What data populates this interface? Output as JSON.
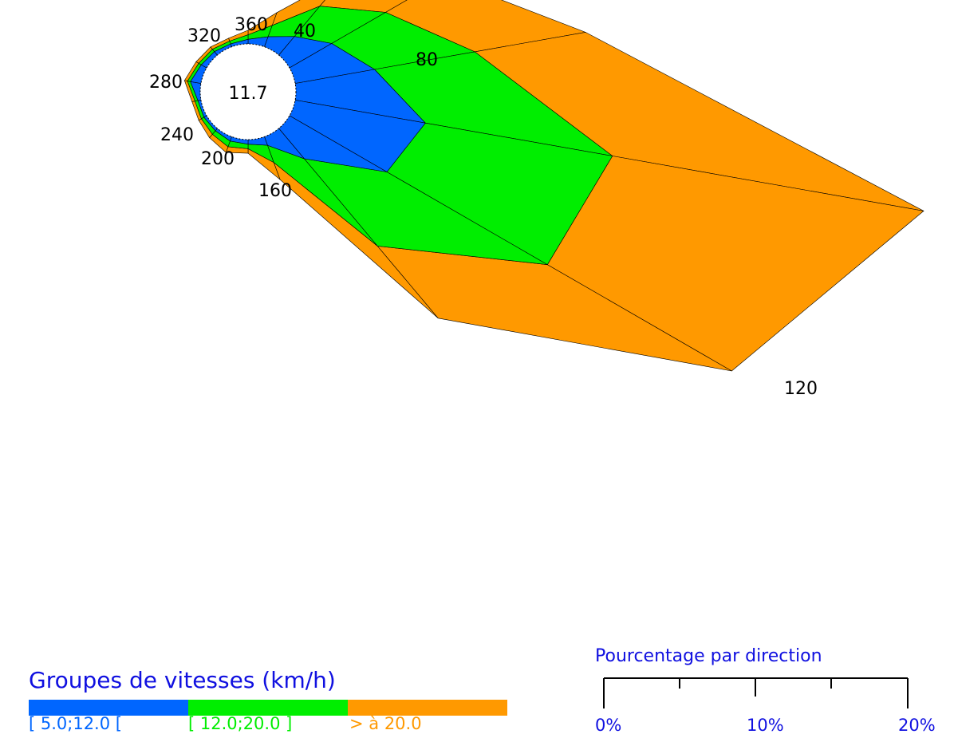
{
  "chart_data": {
    "type": "wind-rose",
    "calm_value": "11.7",
    "direction_labels": [
      "360",
      "40",
      "80",
      "120",
      "160",
      "200",
      "240",
      "280",
      "320"
    ],
    "directions_deg": [
      0,
      20,
      40,
      60,
      80,
      100,
      120,
      140,
      160,
      180,
      200,
      220,
      240,
      260,
      280,
      300,
      320,
      340
    ],
    "series": [
      {
        "label": "[ 5.0;12.0 [",
        "color": "#0066ff",
        "values": [
          0.3,
          0.7,
          1.6,
          3.2,
          5.3,
          8.7,
          7.4,
          2.6,
          0.6,
          0.3,
          0.3,
          0.2,
          0.2,
          0.2,
          0.7,
          0.4,
          0.3,
          0.2
        ]
      },
      {
        "label": "[ 12.0;20.0 ]",
        "color": "#00ee00",
        "values": [
          0.3,
          0.8,
          2.6,
          4.1,
          6.7,
          12.5,
          12.2,
          7.5,
          1.2,
          0.3,
          0.4,
          0.3,
          0.2,
          0.2,
          0.2,
          0.2,
          0.2,
          0.2
        ]
      },
      {
        "label": "> à 20.0",
        "color": "#ff9900",
        "values": [
          0.3,
          0.9,
          2.7,
          4.5,
          7.4,
          20.8,
          14.0,
          6.2,
          1.2,
          0.3,
          0.4,
          0.3,
          0.2,
          0.2,
          0.2,
          0.2,
          0.2,
          0.2
        ]
      }
    ],
    "grid": false
  },
  "legend": {
    "title": "Groupes de vitesses (km/h)",
    "items": [
      {
        "label": "[ 5.0;12.0 [",
        "color": "#0066ff"
      },
      {
        "label": "[ 12.0;20.0 ]",
        "color": "#00ee00"
      },
      {
        "label": "> à 20.0",
        "color": "#ff9900"
      }
    ]
  },
  "scale": {
    "title": "Pourcentage par direction",
    "labels": [
      "0%",
      "10%",
      "20%"
    ]
  }
}
